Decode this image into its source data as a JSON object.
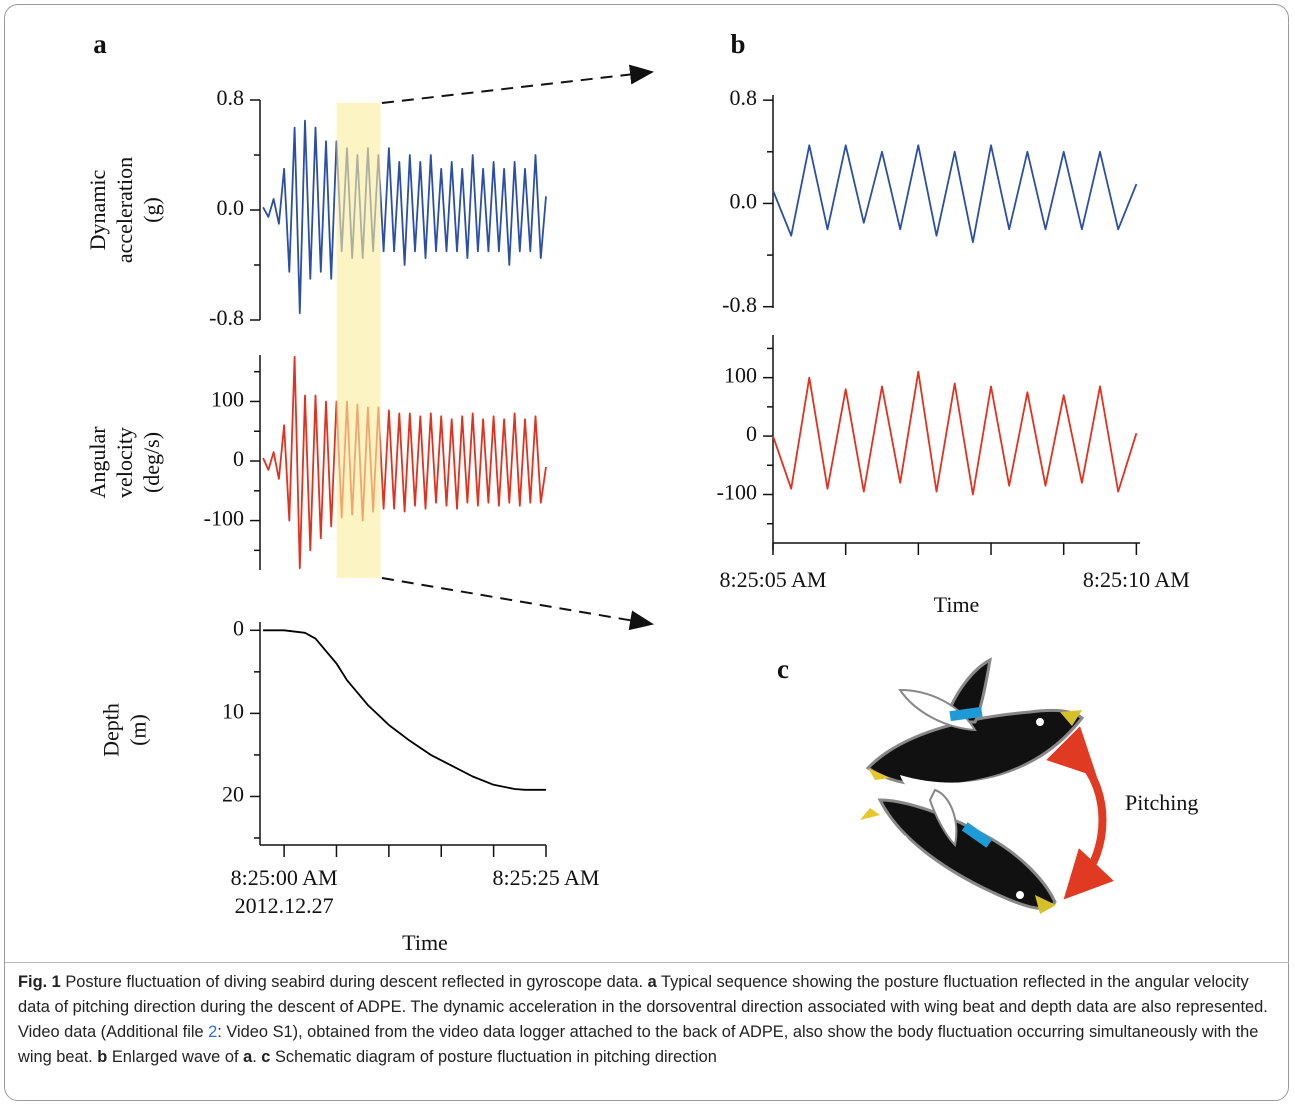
{
  "panel_labels": [
    "a",
    "b",
    "c"
  ],
  "pitching_label": "Pitching",
  "chart_data": [
    {
      "type": "line",
      "ylabel": [
        "Dynamic",
        "acceleration",
        "(g)"
      ],
      "xlim": [
        -2.3,
        25
      ],
      "ylim": [
        -0.8,
        0.8
      ],
      "yticks": [
        -0.8,
        {
          "value": 0,
          "label": "0.0"
        },
        0.8
      ],
      "minor_yticks": [
        -0.4,
        0.4
      ],
      "x": [
        -2,
        -1.5,
        -1,
        -0.5,
        0,
        0.5,
        1,
        1.5,
        2,
        2.5,
        3,
        3.5,
        4,
        4.5,
        5,
        5.5,
        6,
        6.5,
        7,
        7.5,
        8,
        8.5,
        9,
        9.5,
        10,
        10.5,
        11,
        11.5,
        12,
        12.5,
        13,
        13.5,
        14,
        14.5,
        15,
        15.5,
        16,
        16.5,
        17,
        17.5,
        18,
        18.5,
        19,
        19.5,
        20,
        20.5,
        21,
        21.5,
        22,
        22.5,
        23,
        23.5,
        24,
        24.5,
        25
      ],
      "color": "#2b4ea6",
      "values": [
        0.02,
        -0.05,
        0.08,
        -0.1,
        0.3,
        -0.45,
        0.6,
        -0.75,
        0.65,
        -0.5,
        0.6,
        -0.45,
        0.5,
        -0.5,
        0.5,
        -0.3,
        0.45,
        -0.35,
        0.4,
        -0.35,
        0.45,
        -0.3,
        0.4,
        -0.3,
        0.45,
        -0.3,
        0.35,
        -0.4,
        0.4,
        -0.3,
        0.35,
        -0.35,
        0.4,
        -0.3,
        0.3,
        -0.3,
        0.35,
        -0.3,
        0.3,
        -0.35,
        0.4,
        -0.3,
        0.3,
        -0.3,
        0.35,
        -0.3,
        0.3,
        -0.4,
        0.35,
        -0.3,
        0.3,
        -0.3,
        0.4,
        -0.35,
        0.1
      ],
      "highlight_x": [
        5,
        9.2
      ],
      "highlight_color": "#fbeea0"
    },
    {
      "type": "line",
      "ylabel": [
        "Angular",
        "velocity",
        "(deg/s)"
      ],
      "xlim": [
        -2.3,
        25
      ],
      "ylim": [
        -183,
        178
      ],
      "yticks": [
        -100,
        0,
        100
      ],
      "minor_yticks": [
        -150,
        -50,
        50,
        150
      ],
      "x": [
        -2,
        -1.5,
        -1,
        -0.5,
        0,
        0.5,
        1,
        1.5,
        2,
        2.5,
        3,
        3.5,
        4,
        4.5,
        5,
        5.5,
        6,
        6.5,
        7,
        7.5,
        8,
        8.5,
        9,
        9.5,
        10,
        10.5,
        11,
        11.5,
        12,
        12.5,
        13,
        13.5,
        14,
        14.5,
        15,
        15.5,
        16,
        16.5,
        17,
        17.5,
        18,
        18.5,
        19,
        19.5,
        20,
        20.5,
        21,
        21.5,
        22,
        22.5,
        23,
        23.5,
        24,
        24.5,
        25
      ],
      "color": "#e2321f",
      "values": [
        5,
        -15,
        15,
        -30,
        60,
        -100,
        175,
        -180,
        110,
        -150,
        110,
        -130,
        100,
        -110,
        100,
        -95,
        100,
        -90,
        95,
        -100,
        90,
        -85,
        90,
        -80,
        85,
        -80,
        80,
        -85,
        80,
        -75,
        75,
        -80,
        80,
        -70,
        75,
        -75,
        70,
        -80,
        75,
        -70,
        80,
        -75,
        70,
        -70,
        75,
        -75,
        70,
        -70,
        80,
        -75,
        70,
        -70,
        75,
        -70,
        -10
      ]
    },
    {
      "type": "line",
      "ylabel": [
        "Depth",
        "(m)"
      ],
      "xlim": [
        -2.3,
        25
      ],
      "ylim": [
        25,
        -1
      ],
      "yticks": [
        0,
        10,
        20
      ],
      "minor_yticks": [
        5,
        15,
        25
      ],
      "xticks": [
        {
          "value": 0,
          "label": "8:25:00 AM"
        },
        {
          "value": 25,
          "label": "8:25:25 AM"
        }
      ],
      "minor_xticks": [
        5,
        10,
        15,
        20
      ],
      "xdate": "2012.12.27",
      "xlabel": "Time",
      "x": [
        -2,
        0,
        2,
        3,
        4,
        5,
        6,
        7,
        8,
        9,
        10,
        12,
        14,
        16,
        18,
        20,
        22,
        23,
        25
      ],
      "color": "#000000",
      "values": [
        0,
        0,
        0.3,
        1,
        2.5,
        4,
        6,
        7.5,
        9,
        10.2,
        11.4,
        13.3,
        15,
        16.3,
        17.6,
        18.6,
        19.1,
        19.2,
        19.2
      ]
    },
    {
      "type": "line",
      "xlim": [
        5,
        10.05
      ],
      "ylim": [
        -0.81,
        0.84
      ],
      "yticks": [
        -0.8,
        {
          "value": 0,
          "label": "0.0"
        },
        0.8
      ],
      "minor_yticks": [
        -0.4,
        0.4
      ],
      "x": [
        5,
        5.25,
        5.5,
        5.75,
        6,
        6.25,
        6.5,
        6.75,
        7,
        7.25,
        7.5,
        7.75,
        8,
        8.25,
        8.5,
        8.75,
        9,
        9.25,
        9.5,
        9.75,
        10
      ],
      "color": "#2b4ea6",
      "values": [
        0.1,
        -0.25,
        0.45,
        -0.2,
        0.45,
        -0.15,
        0.4,
        -0.2,
        0.45,
        -0.25,
        0.4,
        -0.3,
        0.45,
        -0.2,
        0.4,
        -0.2,
        0.4,
        -0.2,
        0.4,
        -0.2,
        0.15
      ]
    },
    {
      "type": "line",
      "xlim": [
        5,
        10.05
      ],
      "ylim": [
        -195,
        173
      ],
      "yticks": [
        -100,
        0,
        100
      ],
      "minor_yticks": [
        -150,
        -50,
        50,
        150
      ],
      "xticks": [
        {
          "value": 5,
          "label": "8:25:05 AM"
        },
        {
          "value": 10,
          "label": "8:25:10 AM"
        }
      ],
      "minor_xticks": [
        6,
        7,
        8,
        9
      ],
      "xlabel": "Time",
      "x": [
        5,
        5.25,
        5.5,
        5.75,
        6,
        6.25,
        6.5,
        6.75,
        7,
        7.25,
        7.5,
        7.75,
        8,
        8.25,
        8.5,
        8.75,
        9,
        9.25,
        9.5,
        9.75,
        10
      ],
      "color": "#e2321f",
      "values": [
        0,
        -90,
        100,
        -90,
        80,
        -95,
        85,
        -80,
        110,
        -95,
        90,
        -100,
        85,
        -85,
        75,
        -85,
        70,
        -80,
        85,
        -95,
        5
      ]
    }
  ],
  "caption": {
    "segments": [
      "Fig. 1",
      "  Posture fluctuation of diving seabird during descent reflected in gyroscope data. ",
      "a",
      " Typical sequence showing the posture fluctuation reflected in the angular velocity data of pitching direction during the descent of ADPE. The dynamic acceleration in the dorsoventral direction associated with wing beat and depth data are also represented. Video data (Additional file ",
      "2",
      ": Video S1), obtained from the video data logger attached to the back of ADPE, also show the body fluctuation occurring simultaneously with the wing beat. ",
      "b",
      " Enlarged wave of ",
      "a",
      ". ",
      "c",
      " Schematic diagram of posture fluctuation in pitching direction"
    ]
  }
}
